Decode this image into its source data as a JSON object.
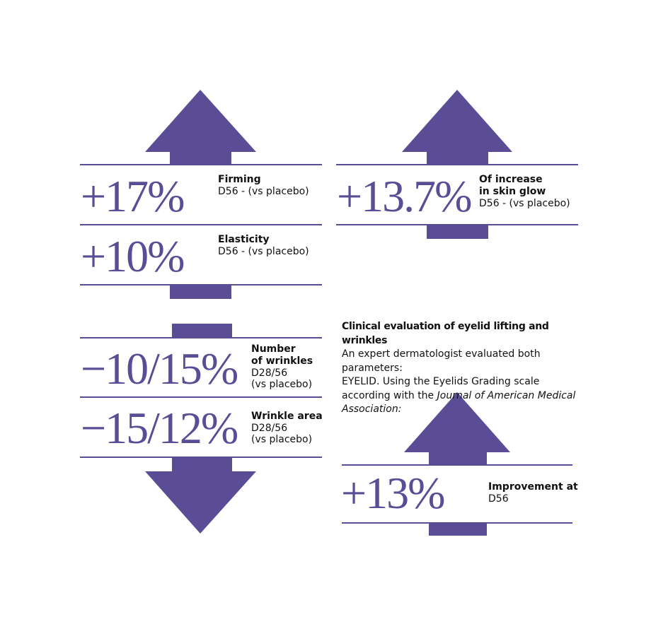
{
  "stats_top_left": [
    {
      "figure": "+17%",
      "label": [
        "Firming"
      ],
      "detail": [
        "D56 - (vs placebo)"
      ]
    },
    {
      "figure": "+10%",
      "label": [
        "Elasticity"
      ],
      "detail": [
        "D56 - (vs placebo)"
      ]
    }
  ],
  "stats_top_right": [
    {
      "figure": "+13.7%",
      "label": [
        "Of increase",
        "in skin glow"
      ],
      "detail": [
        "D56 - (vs placebo)"
      ]
    }
  ],
  "stats_bottom_left": [
    {
      "figure": "−10/15%",
      "label": [
        "Number",
        "of wrinkles"
      ],
      "detail": [
        "D28/56",
        "(vs placebo)"
      ]
    },
    {
      "figure": "−15/12%",
      "label": [
        "Wrinkle area"
      ],
      "detail": [
        "D28/56",
        "(vs placebo)"
      ]
    }
  ],
  "clinical": {
    "heading": "Clinical evaluation of eyelid lifting and wrinkles",
    "body": [
      "An expert dermatologist evaluated both parameters:",
      "EYELID. Using the Eyelids Grading scale according with the "
    ],
    "source": "Journal of American Medical Association:"
  },
  "stats_bottom_right": [
    {
      "figure": "+13%",
      "label": [
        "Improvement at"
      ],
      "detail": [
        "D56"
      ]
    }
  ]
}
